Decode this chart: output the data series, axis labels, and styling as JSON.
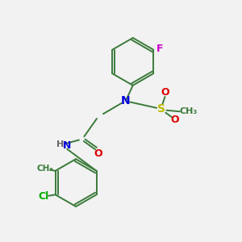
{
  "background_color": "#f2f2f2",
  "bond_color": "#3a7a3a",
  "atom_colors": {
    "N": "#0000dd",
    "O": "#dd0000",
    "S": "#bbbb00",
    "F": "#cc00cc",
    "Cl": "#00aa00",
    "H": "#666666",
    "C": "#3a7a3a"
  },
  "figsize": [
    3.0,
    3.0
  ],
  "dpi": 100
}
